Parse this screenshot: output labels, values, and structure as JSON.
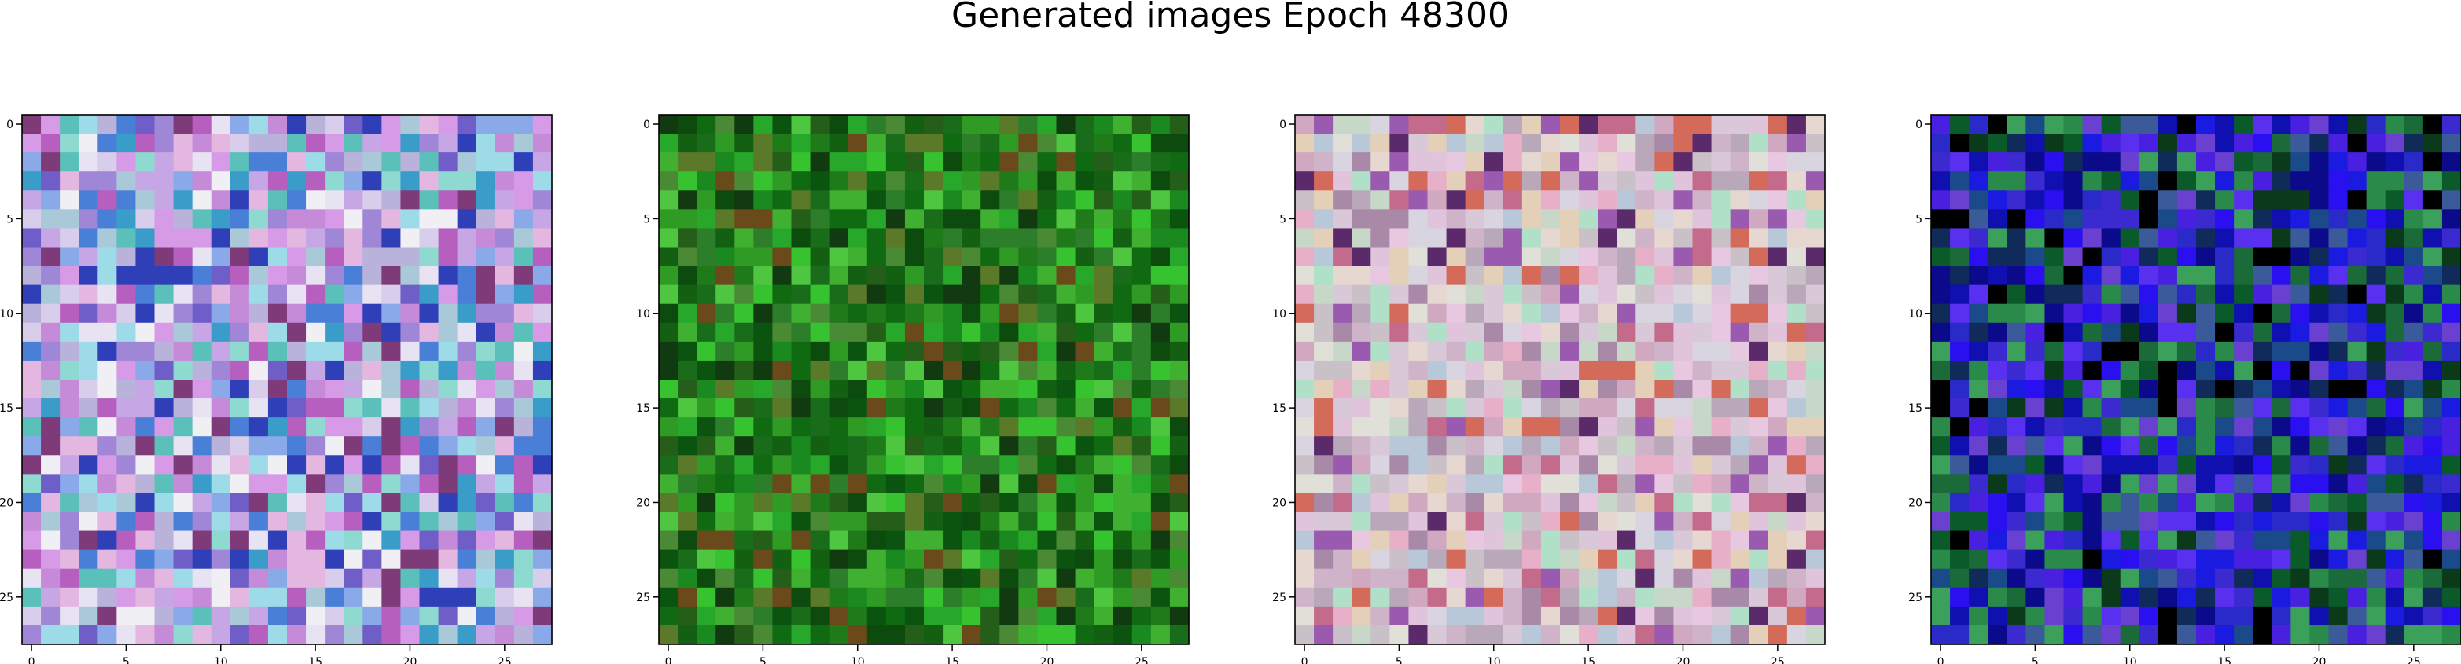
{
  "figure": {
    "title": "Generated images Epoch 48300"
  },
  "chart_data": [
    {
      "type": "heatmap",
      "panel": 1,
      "grid": [
        28,
        28
      ],
      "xlim": [
        -0.5,
        27.5
      ],
      "ylim": [
        27.5,
        -0.5
      ],
      "xticks": [
        0,
        5,
        10,
        15,
        20,
        25
      ],
      "yticks": [
        0,
        5,
        10,
        15,
        20,
        25
      ],
      "palette": [
        "#b9b3dc",
        "#c7a6e6",
        "#9f86d6",
        "#8aa9e8",
        "#d8cdea",
        "#a9c9d9",
        "#6f5ec8",
        "#e3b7e0",
        "#4a7fd8",
        "#8ed9d0",
        "#c58ad8",
        "#2f3fb8",
        "#e7e3f3",
        "#5ac0b9",
        "#b65fbf",
        "#7f3a7a",
        "#d79ae6",
        "#9edbe8",
        "#3a9cc9",
        "#f0f0f4"
      ]
    },
    {
      "type": "heatmap",
      "panel": 2,
      "grid": [
        28,
        28
      ],
      "xlim": [
        -0.5,
        27.5
      ],
      "ylim": [
        27.5,
        -0.5
      ],
      "xticks": [
        0,
        5,
        10,
        15,
        20,
        25
      ],
      "yticks": [
        0,
        5,
        10,
        15,
        20,
        25
      ],
      "palette": [
        "#1f7a1a",
        "#2f9a24",
        "#0f6a12",
        "#3fb02f",
        "#186c1a",
        "#4a8a34",
        "#0a5410",
        "#28a82a",
        "#5a7a2a",
        "#136012",
        "#37c22f",
        "#0d4a0e",
        "#6a4a1a",
        "#1a8a20",
        "#245e18",
        "#4fc640",
        "#123a10",
        "#2c7e2a"
      ]
    },
    {
      "type": "heatmap",
      "panel": 3,
      "grid": [
        28,
        28
      ],
      "xlim": [
        -0.5,
        27.5
      ],
      "ylim": [
        27.5,
        -0.5
      ],
      "xticks": [
        0,
        5,
        10,
        15,
        20,
        25
      ],
      "yticks": [
        0,
        5,
        10,
        15,
        20,
        25
      ],
      "palette": [
        "#d9c8d8",
        "#e0c4dc",
        "#c9c0c8",
        "#e6d8d0",
        "#cfb4c9",
        "#d8d4e0",
        "#b9a8b9",
        "#e8c8e0",
        "#c8d8c8",
        "#d0a8c0",
        "#e0e0d8",
        "#a88aa8",
        "#c46a8a",
        "#9a5ab0",
        "#e8b0c8",
        "#b8c8d8",
        "#5a2a6a",
        "#d46a5a",
        "#b0e0c8",
        "#e4d0b8"
      ]
    },
    {
      "type": "heatmap",
      "panel": 4,
      "grid": [
        28,
        28
      ],
      "xlim": [
        -0.5,
        27.5
      ],
      "ylim": [
        27.5,
        -0.5
      ],
      "xticks": [
        0,
        5,
        10,
        15,
        20,
        25
      ],
      "yticks": [
        0,
        5,
        10,
        15,
        20,
        25
      ],
      "palette": [
        "#1a1ae0",
        "#2a10f0",
        "#3a2ad0",
        "#0a0a8a",
        "#1a6a3a",
        "#2a8a4a",
        "#0a3a1a",
        "#4a20e0",
        "#1010b0",
        "#3a5a9a",
        "#2a2ac8",
        "#5a30f0",
        "#0a5a2a",
        "#102a5a",
        "#3aa05a",
        "#6a40d0",
        "#000000",
        "#1a4a8a"
      ]
    }
  ]
}
